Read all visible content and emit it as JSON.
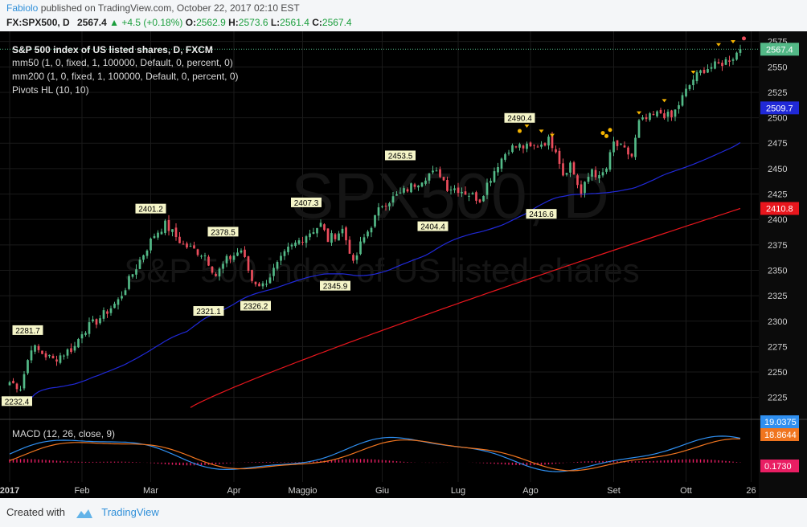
{
  "header": {
    "author": "Fabiolo",
    "published_text": "published on TradingView.com, October 22, 2017 02:10 EST",
    "symbol": "FX:SPX500, D",
    "last": "2567.4",
    "change": "+4.5 (+0.18%)",
    "open_label": "O:",
    "open": "2562.9",
    "high_label": "H:",
    "high": "2573.6",
    "low_label": "L:",
    "low": "2561.4",
    "close_label": "C:",
    "close": "2567.4"
  },
  "legend": {
    "title": "S&P 500 index of US listed shares, D, FXCM",
    "line1": "mm50 (1, 0, fixed, 1, 100000, Default, 0, percent, 0)",
    "line2": "mm200 (1, 0, fixed, 1, 100000, Default, 0, percent, 0)",
    "line3": "Pivots HL (10, 10)",
    "macd": "MACD (12, 26, close, 9)"
  },
  "watermark": {
    "big": "SPX500, D",
    "small": "S&P 500 index of US listed shares"
  },
  "footer": {
    "created": "Created with",
    "brand": "TradingView"
  },
  "colors": {
    "background": "#000000",
    "up": "#53b987",
    "down": "#eb4d5c",
    "ma50": "#2029d8",
    "ma200": "#e8161d",
    "macd": "#2f8ff0",
    "signal": "#f0751f",
    "hist": "#e91e63",
    "pivot_label_bg": "#f5f5c8",
    "pivot_marker": "#f5b400",
    "axis_text": "#cfcfcf",
    "grid": "#1a1a1a"
  },
  "chart_data": {
    "type": "candlestick",
    "ylim": [
      2205,
      2585
    ],
    "yticks": [
      2225,
      2250,
      2275,
      2300,
      2325,
      2350,
      2375,
      2400,
      2425,
      2450,
      2475,
      2500,
      2525,
      2550,
      2575
    ],
    "x_labels": [
      {
        "label": "2017",
        "bar": 0
      },
      {
        "label": "Feb",
        "bar": 20
      },
      {
        "label": "Mar",
        "bar": 39
      },
      {
        "label": "Apr",
        "bar": 62
      },
      {
        "label": "Maggio",
        "bar": 81
      },
      {
        "label": "Giu",
        "bar": 103
      },
      {
        "label": "Lug",
        "bar": 124
      },
      {
        "label": "Ago",
        "bar": 144
      },
      {
        "label": "Set",
        "bar": 167
      },
      {
        "label": "Ott",
        "bar": 187
      },
      {
        "label": "26",
        "bar": 205
      }
    ],
    "anchors": [
      [
        0,
        2240
      ],
      [
        3,
        2235
      ],
      [
        6,
        2275
      ],
      [
        12,
        2262
      ],
      [
        18,
        2275
      ],
      [
        20,
        2290
      ],
      [
        24,
        2300
      ],
      [
        30,
        2320
      ],
      [
        36,
        2360
      ],
      [
        40,
        2385
      ],
      [
        43,
        2395
      ],
      [
        48,
        2375
      ],
      [
        54,
        2365
      ],
      [
        57,
        2345
      ],
      [
        60,
        2360
      ],
      [
        64,
        2370
      ],
      [
        67,
        2340
      ],
      [
        70,
        2335
      ],
      [
        72,
        2345
      ],
      [
        77,
        2370
      ],
      [
        82,
        2385
      ],
      [
        86,
        2395
      ],
      [
        88,
        2380
      ],
      [
        92,
        2390
      ],
      [
        94,
        2370
      ],
      [
        95,
        2355
      ],
      [
        97,
        2375
      ],
      [
        100,
        2395
      ],
      [
        103,
        2415
      ],
      [
        108,
        2425
      ],
      [
        112,
        2435
      ],
      [
        116,
        2445
      ],
      [
        119,
        2445
      ],
      [
        121,
        2432
      ],
      [
        124,
        2430
      ],
      [
        127,
        2425
      ],
      [
        130,
        2420
      ],
      [
        132,
        2435
      ],
      [
        135,
        2455
      ],
      [
        138,
        2470
      ],
      [
        141,
        2472
      ],
      [
        144,
        2470
      ],
      [
        147,
        2475
      ],
      [
        149,
        2478
      ],
      [
        151,
        2470
      ],
      [
        153,
        2445
      ],
      [
        155,
        2455
      ],
      [
        158,
        2425
      ],
      [
        161,
        2450
      ],
      [
        163,
        2440
      ],
      [
        165,
        2450
      ],
      [
        167,
        2475
      ],
      [
        169,
        2470
      ],
      [
        172,
        2462
      ],
      [
        174,
        2495
      ],
      [
        177,
        2500
      ],
      [
        180,
        2505
      ],
      [
        183,
        2500
      ],
      [
        186,
        2520
      ],
      [
        189,
        2538
      ],
      [
        192,
        2548
      ],
      [
        196,
        2552
      ],
      [
        200,
        2560
      ],
      [
        202,
        2567.4
      ]
    ],
    "bar_count": 203,
    "last_close": 2567.4,
    "price_labels": [
      {
        "text": "2567.4",
        "value": 2567.4,
        "color": "#53b987"
      },
      {
        "text": "2509.7",
        "value": 2509.7,
        "color": "#2029d8"
      },
      {
        "text": "2410.8",
        "value": 2410.8,
        "color": "#e8161d"
      }
    ],
    "pivots": [
      {
        "text": "2281.7",
        "bar": 5,
        "value": 2281.7,
        "type": "high"
      },
      {
        "text": "2232.4",
        "bar": 2,
        "value": 2232.4,
        "type": "low"
      },
      {
        "text": "2401.2",
        "bar": 39,
        "value": 2401.2,
        "type": "high"
      },
      {
        "text": "2378.5",
        "bar": 59,
        "value": 2378.5,
        "type": "high"
      },
      {
        "text": "2321.1",
        "bar": 55,
        "value": 2321.1,
        "type": "low"
      },
      {
        "text": "2326.2",
        "bar": 68,
        "value": 2326.2,
        "type": "low"
      },
      {
        "text": "2407.3",
        "bar": 82,
        "value": 2407.3,
        "type": "high"
      },
      {
        "text": "2345.9",
        "bar": 90,
        "value": 2345.9,
        "type": "low"
      },
      {
        "text": "2453.5",
        "bar": 108,
        "value": 2453.5,
        "type": "high"
      },
      {
        "text": "2404.4",
        "bar": 117,
        "value": 2404.4,
        "type": "low"
      },
      {
        "text": "2490.4",
        "bar": 141,
        "value": 2490.4,
        "type": "high"
      },
      {
        "text": "2416.6",
        "bar": 147,
        "value": 2416.6,
        "type": "low"
      }
    ],
    "macd": {
      "ylim": [
        -0.5,
        1.2
      ],
      "labels": [
        {
          "text": "19.0375",
          "color": "#2f8ff0",
          "pos": 0.0
        },
        {
          "text": "18.8644",
          "color": "#f0751f",
          "pos": 0.0
        },
        {
          "text": "0.1730",
          "color": "#e91e63",
          "pos": 0.0
        }
      ]
    }
  }
}
